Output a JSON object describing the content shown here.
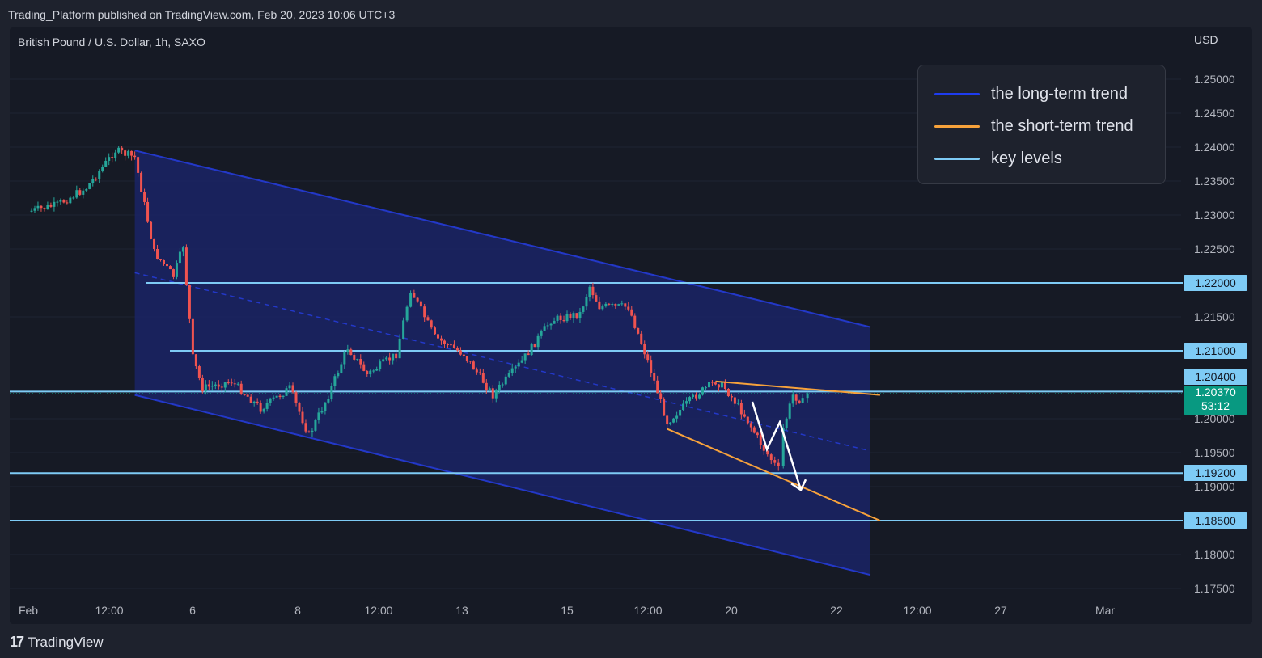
{
  "header": {
    "publish_line": "Trading_Platform published on TradingView.com, Feb 20, 2023 10:06 UTC+3"
  },
  "chart": {
    "symbol_line": "British Pound / U.S. Dollar, 1h, SAXO",
    "currency": "USD",
    "y_ticks": [
      "1.25000",
      "1.24500",
      "1.24000",
      "1.23500",
      "1.23000",
      "1.22500",
      "1.21500",
      "1.20000",
      "1.19500",
      "1.19000",
      "1.18000",
      "1.17500"
    ],
    "x_ticks": [
      "Feb",
      "12:00",
      "6",
      "8",
      "12:00",
      "13",
      "15",
      "12:00",
      "20",
      "22",
      "12:00",
      "27",
      "Mar"
    ],
    "price_tags": [
      "1.22000",
      "1.21000",
      "1.20400",
      "1.19200",
      "1.18500"
    ],
    "current_price": "1.20370",
    "countdown": "53:12",
    "colors": {
      "up_candle": "#26a69a",
      "down_candle": "#ef5350",
      "channel_fill": "#1a2466",
      "channel_line": "#2338c8",
      "long_term": "#1e3cf0",
      "short_term": "#f7a23b",
      "key_level": "#7ecbf5",
      "current_price": "#089981"
    }
  },
  "legend": {
    "items": [
      {
        "label": "the long-term trend",
        "color": "#1e3cf0"
      },
      {
        "label": "the short-term trend",
        "color": "#f7a23b"
      },
      {
        "label": "key levels",
        "color": "#7ecbf5"
      }
    ]
  },
  "footer": {
    "brand": "TradingView",
    "logo_mark": "17"
  },
  "chart_data": {
    "type": "candlestick",
    "symbol": "GBPUSD",
    "interval": "1h",
    "x_axis_ticks": [
      "Feb",
      "12:00",
      "6",
      "8",
      "12:00",
      "13",
      "15",
      "12:00",
      "20",
      "22",
      "12:00",
      "27",
      "Mar"
    ],
    "ylim": [
      1.173,
      1.255
    ],
    "key_levels": [
      1.22,
      1.21,
      1.204,
      1.192,
      1.185
    ],
    "current_price": 1.2037,
    "close_path": [
      {
        "date": "Feb 1 00:00",
        "price": 1.2305
      },
      {
        "date": "Feb 1 12:00",
        "price": 1.2315
      },
      {
        "date": "Feb 2 00:00",
        "price": 1.234
      },
      {
        "date": "Feb 2 12:00",
        "price": 1.2395
      },
      {
        "date": "Feb 2 20:00",
        "price": 1.2385
      },
      {
        "date": "Feb 3 04:00",
        "price": 1.2245
      },
      {
        "date": "Feb 3 12:00",
        "price": 1.221
      },
      {
        "date": "Feb 3 16:00",
        "price": 1.2255
      },
      {
        "date": "Feb 3 20:00",
        "price": 1.209
      },
      {
        "date": "Feb 6 00:00",
        "price": 1.2045
      },
      {
        "date": "Feb 6 12:00",
        "price": 1.2055
      },
      {
        "date": "Feb 7 00:00",
        "price": 1.2015
      },
      {
        "date": "Feb 7 12:00",
        "price": 1.2045
      },
      {
        "date": "Feb 7 20:00",
        "price": 1.1975
      },
      {
        "date": "Feb 8 04:00",
        "price": 1.2035
      },
      {
        "date": "Feb 8 12:00",
        "price": 1.2105
      },
      {
        "date": "Feb 8 20:00",
        "price": 1.2065
      },
      {
        "date": "Feb 9 08:00",
        "price": 1.2095
      },
      {
        "date": "Feb 9 14:00",
        "price": 1.219
      },
      {
        "date": "Feb 10 00:00",
        "price": 1.212
      },
      {
        "date": "Feb 10 12:00",
        "price": 1.2095
      },
      {
        "date": "Feb 13 00:00",
        "price": 1.2035
      },
      {
        "date": "Feb 13 12:00",
        "price": 1.2085
      },
      {
        "date": "Feb 14 00:00",
        "price": 1.2145
      },
      {
        "date": "Feb 14 12:00",
        "price": 1.2155
      },
      {
        "date": "Feb 14 16:00",
        "price": 1.2195
      },
      {
        "date": "Feb 14 20:00",
        "price": 1.2165
      },
      {
        "date": "Feb 15 08:00",
        "price": 1.2165
      },
      {
        "date": "Feb 15 16:00",
        "price": 1.2085
      },
      {
        "date": "Feb 16 00:00",
        "price": 1.1995
      },
      {
        "date": "Feb 16 12:00",
        "price": 1.2035
      },
      {
        "date": "Feb 16 20:00",
        "price": 1.2055
      },
      {
        "date": "Feb 17 00:00",
        "price": 1.2045
      },
      {
        "date": "Feb 17 08:00",
        "price": 1.2005
      },
      {
        "date": "Feb 17 16:00",
        "price": 1.1955
      },
      {
        "date": "Feb 17 22:00",
        "price": 1.1925
      },
      {
        "date": "Feb 20 00:00",
        "price": 1.1985
      },
      {
        "date": "Feb 20 04:00",
        "price": 1.2035
      },
      {
        "date": "Feb 20 08:00",
        "price": 1.2025
      },
      {
        "date": "Feb 20 10:00",
        "price": 1.2037
      }
    ],
    "annotations": {
      "channel": {
        "upper_start": [
          1.2395,
          "Feb 2 20:00"
        ],
        "upper_end": [
          1.2135,
          "Feb 21 12:00"
        ],
        "lower_start": [
          1.2035,
          "Feb 2 20:00"
        ],
        "lower_end": [
          1.177,
          "Feb 21 12:00"
        ]
      },
      "short_term_upper": [
        [
          1.2055,
          "Feb 16 20:00"
        ],
        [
          1.2035,
          "Feb 21 16:00"
        ]
      ],
      "short_term_lower": [
        [
          1.1985,
          "Feb 16 00:00"
        ],
        [
          1.185,
          "Feb 21 16:00"
        ]
      ],
      "projection_path": [
        1.2025,
        1.1955,
        1.1995,
        1.1895
      ]
    }
  }
}
